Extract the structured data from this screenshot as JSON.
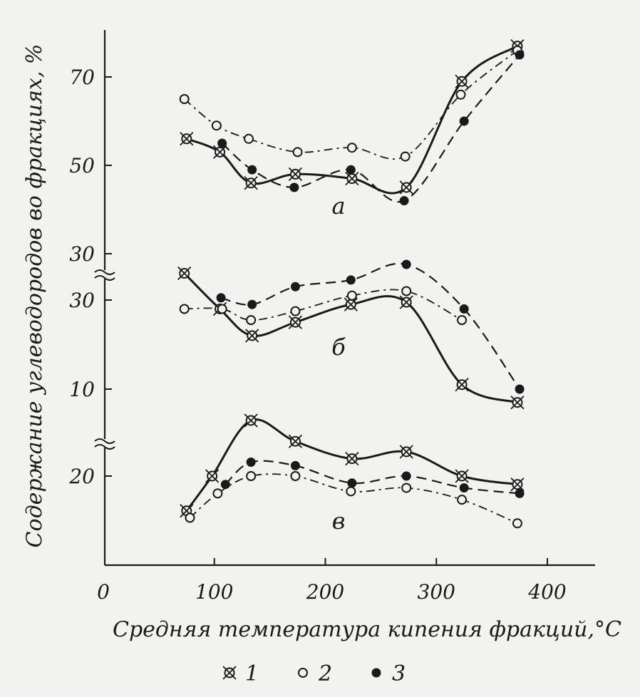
{
  "chart_data": {
    "type": "line",
    "xlabel": "Средняя температура кипения фракций,°C",
    "ylabel": "Содержание углеводородов во фракциях, %",
    "x_ticks": [
      "0",
      "100",
      "200",
      "300",
      "400"
    ],
    "xlim": [
      0,
      420
    ],
    "legend": {
      "placement": "bottom",
      "items": [
        {
          "marker": "cross-circle",
          "label": "1"
        },
        {
          "marker": "open-circle",
          "label": "2"
        },
        {
          "marker": "filled-circle",
          "label": "3"
        }
      ]
    },
    "panels": [
      {
        "label": "а",
        "y_ticks": [
          {
            "value": 70,
            "label": "70"
          },
          {
            "value": 50,
            "label": "50"
          },
          {
            "value": 30,
            "label": "30"
          }
        ],
        "ylim": [
          28,
          78
        ],
        "series": [
          {
            "name": "1",
            "marker": "cross-circle",
            "line": "solid",
            "x": [
              75,
              105,
              133,
              173,
              224,
              273,
              323,
              373
            ],
            "y": [
              56,
              53,
              46,
              48,
              47,
              45,
              69,
              77
            ]
          },
          {
            "name": "2",
            "marker": "open-circle",
            "line": "dashdot",
            "x": [
              73,
              102,
              131,
              175,
              224,
              272,
              322,
              373
            ],
            "y": [
              65,
              59,
              56,
              53,
              54,
              52,
              66,
              76
            ]
          },
          {
            "name": "3",
            "marker": "filled-circle",
            "line": "dashed",
            "x": [
              107,
              134,
              172,
              223,
              271,
              325,
              375
            ],
            "y": [
              55,
              49,
              45,
              49,
              42,
              60,
              75
            ]
          }
        ]
      },
      {
        "label": "б",
        "y_ticks": [
          {
            "value": 30,
            "label": "30"
          },
          {
            "value": 10,
            "label": "10"
          }
        ],
        "ylim": [
          5,
          36
        ],
        "series": [
          {
            "name": "1",
            "marker": "cross-circle",
            "line": "solid",
            "x": [
              73,
              105,
              134,
              173,
              223,
              273,
              323,
              373
            ],
            "y": [
              36,
              28,
              22,
              25,
              29,
              29.5,
              11,
              7
            ]
          },
          {
            "name": "2",
            "marker": "open-circle",
            "line": "dashdot",
            "x": [
              73,
              107,
              133,
              173,
              224,
              273,
              323
            ],
            "y": [
              28,
              28,
              25.5,
              27.5,
              31,
              32,
              25.5
            ]
          },
          {
            "name": "3",
            "marker": "filled-circle",
            "line": "dashed",
            "x": [
              106,
              134,
              173,
              223,
              273,
              325,
              375
            ],
            "y": [
              30.5,
              29,
              33,
              34.5,
              38,
              28,
              10
            ]
          }
        ]
      },
      {
        "label": "в",
        "y_ticks": [
          {
            "value": 20,
            "label": "20"
          }
        ],
        "ylim": [
          10,
          28
        ],
        "series": [
          {
            "name": "1",
            "marker": "cross-circle",
            "line": "solid",
            "x": [
              75,
              98,
              133,
              173,
              224,
              273,
              323,
              373
            ],
            "y": [
              15,
              20,
              28,
              25,
              22.5,
              23.5,
              20,
              18.8
            ]
          },
          {
            "name": "2",
            "marker": "open-circle",
            "line": "dashdot",
            "x": [
              78,
              103,
              133,
              173,
              223,
              273,
              323,
              373
            ],
            "y": [
              14,
              17.5,
              20,
              20,
              17.8,
              18.3,
              16.6,
              13.2
            ]
          },
          {
            "name": "3",
            "marker": "filled-circle",
            "line": "dashed",
            "x": [
              110,
              133,
              173,
              224,
              273,
              325,
              375
            ],
            "y": [
              18.8,
              22,
              21.5,
              19,
              20,
              18.3,
              17.5
            ]
          }
        ]
      }
    ]
  }
}
